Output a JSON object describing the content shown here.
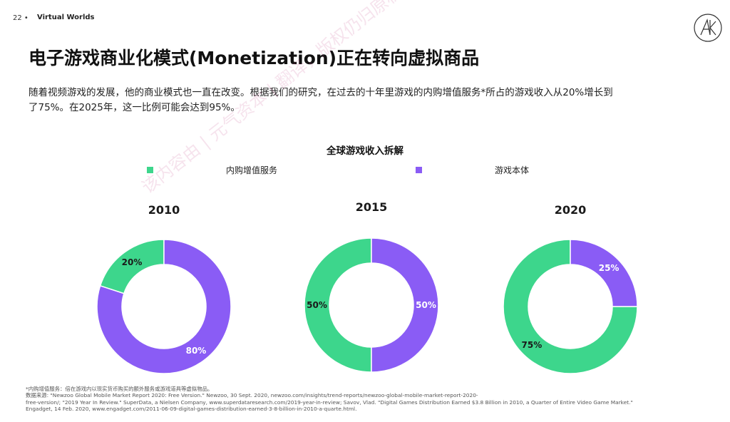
{
  "header": {
    "page_number": "22 •",
    "report_name": "Virtual Worlds"
  },
  "logo": {
    "icon": "ak-monogram-icon"
  },
  "headline": "电子游戏商业化模式(Monetization)正在转向虚拟商品",
  "intro": {
    "line1": "随着视频游戏的发展，他的商业模式也一直在改变。根据我们的研究，在过去的十年里游戏的内购增值服务*所占的游戏收入从20%增长到",
    "line2": "了75%。在2025年，这一比例可能会达到95%。"
  },
  "watermark": "该内容由 | 元气资本 | 翻译，版权仍归原机构所有",
  "chart_data": {
    "type": "pie",
    "variant": "donut",
    "title": "全球游戏收入拆解",
    "legend": [
      {
        "name": "内购增值服务",
        "color": "#3dd68c"
      },
      {
        "name": "游戏本体",
        "color": "#8a5cf5"
      }
    ],
    "legend_position": "top",
    "charts": [
      {
        "title": "2010",
        "labels": [
          "20%",
          "80%"
        ],
        "values": [
          20,
          80
        ]
      },
      {
        "title": "2015",
        "labels": [
          "50%",
          "50%"
        ],
        "values": [
          50,
          50
        ]
      },
      {
        "title": "2020",
        "labels": [
          "75%",
          "25%"
        ],
        "values": [
          75,
          25
        ]
      }
    ]
  },
  "footnotes": {
    "line1": "*内购增值服务：倍在游戏内以现实货币购买的额外服务或游戏道具等虚拟物品。",
    "line2": "数据来源: \"Newzoo Global Mobile Market Report 2020: Free Version.\" Newzoo, 30 Sept. 2020, newzoo.com/insights/trend-reports/newzoo-global-mobile-market-report-2020-",
    "line3": "free-version/; \"2019 Year In Review.\" SuperData, a Nielsen Company, www.superdataresearch.com/2019-year-in-review; Savov, Vlad. \"Digital Games Distribution Earned $3.8 Billion in 2010, a Quarter of Entire Video Game Market.\"",
    "line4": "Engadget, 14 Feb. 2020, www.engadget.com/2011-06-09-digital-games-distribution-earned-3-8-billion-in-2010-a-quarte.html."
  }
}
